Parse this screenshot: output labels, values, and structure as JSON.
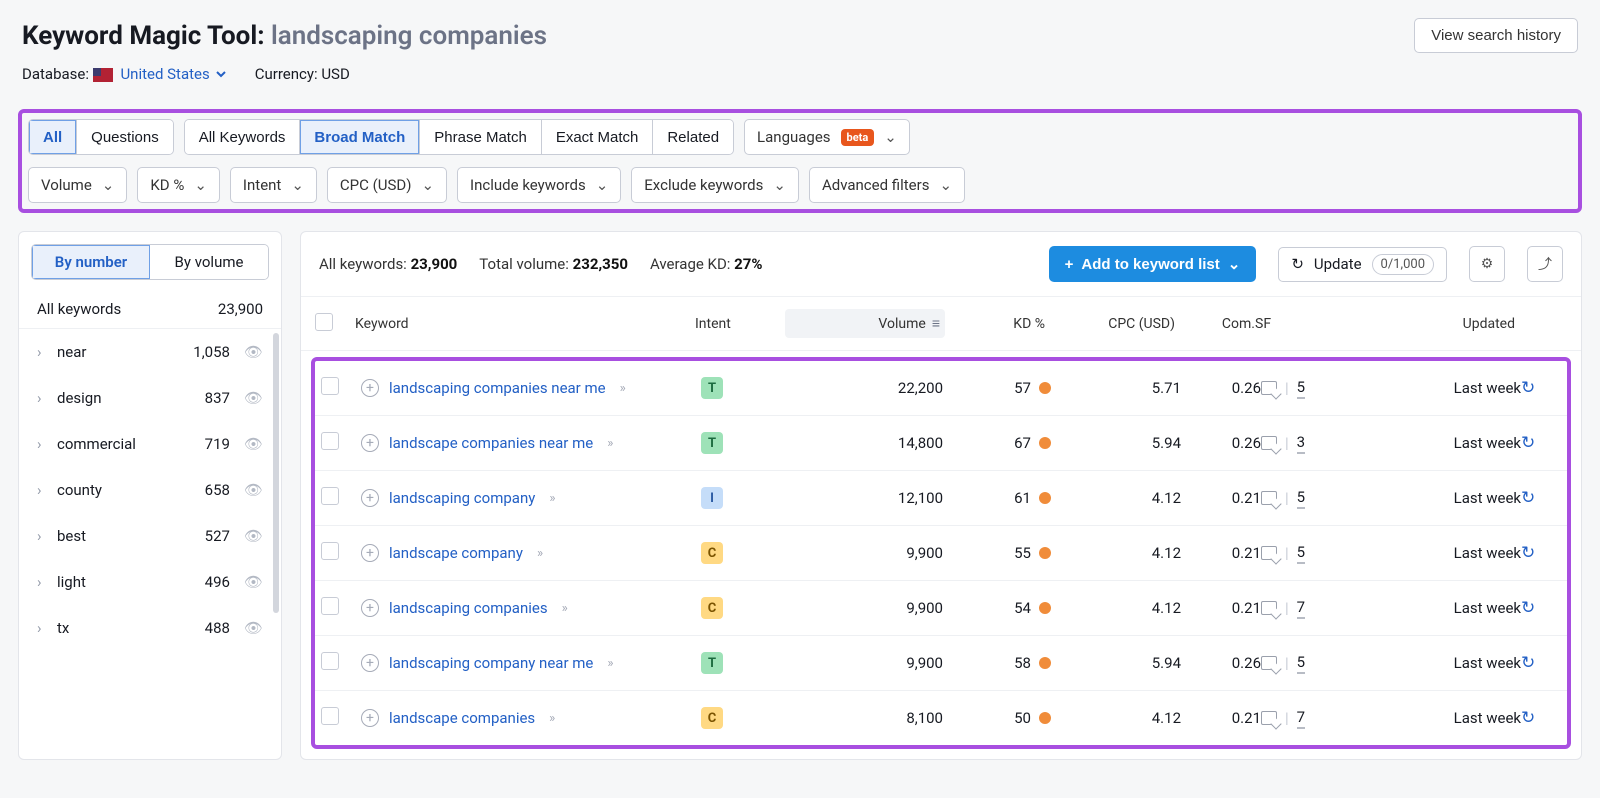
{
  "header": {
    "tool_name": "Keyword Magic Tool:",
    "query": "landscaping companies",
    "history_btn": "View search history",
    "database_label": "Database:",
    "database_value": "United States",
    "currency_label": "Currency: USD"
  },
  "filters": {
    "tabs1": [
      "All",
      "Questions"
    ],
    "tabs1_active": 0,
    "tabs2": [
      "All Keywords",
      "Broad Match",
      "Phrase Match",
      "Exact Match",
      "Related"
    ],
    "tabs2_active": 1,
    "languages_label": "Languages",
    "beta_label": "beta",
    "row2": [
      "Volume",
      "KD %",
      "Intent",
      "CPC (USD)",
      "Include keywords",
      "Exclude keywords",
      "Advanced filters"
    ]
  },
  "sidebar": {
    "tab1": "By number",
    "tab2": "By volume",
    "all_label": "All keywords",
    "all_count": "23,900",
    "items": [
      {
        "name": "near",
        "count": "1,058"
      },
      {
        "name": "design",
        "count": "837"
      },
      {
        "name": "commercial",
        "count": "719"
      },
      {
        "name": "county",
        "count": "658"
      },
      {
        "name": "best",
        "count": "527"
      },
      {
        "name": "light",
        "count": "496"
      },
      {
        "name": "tx",
        "count": "488"
      }
    ]
  },
  "stats": {
    "all_label": "All keywords:",
    "all_value": "23,900",
    "vol_label": "Total volume:",
    "vol_value": "232,350",
    "kd_label": "Average KD:",
    "kd_value": "27%",
    "add_btn": "Add to keyword list",
    "update_btn": "Update",
    "update_count": "0/1,000"
  },
  "table": {
    "headers": {
      "keyword": "Keyword",
      "intent": "Intent",
      "volume": "Volume",
      "kd": "KD %",
      "cpc": "CPC (USD)",
      "com": "Com.",
      "sf": "SF",
      "updated": "Updated"
    },
    "rows": [
      {
        "keyword": "landscaping companies near me",
        "intent": "T",
        "volume": "22,200",
        "kd": "57",
        "cpc": "5.71",
        "com": "0.26",
        "sf": "5",
        "updated": "Last week"
      },
      {
        "keyword": "landscape companies near me",
        "intent": "T",
        "volume": "14,800",
        "kd": "67",
        "cpc": "5.94",
        "com": "0.26",
        "sf": "3",
        "updated": "Last week"
      },
      {
        "keyword": "landscaping company",
        "intent": "I",
        "volume": "12,100",
        "kd": "61",
        "cpc": "4.12",
        "com": "0.21",
        "sf": "5",
        "updated": "Last week"
      },
      {
        "keyword": "landscape company",
        "intent": "C",
        "volume": "9,900",
        "kd": "55",
        "cpc": "4.12",
        "com": "0.21",
        "sf": "5",
        "updated": "Last week"
      },
      {
        "keyword": "landscaping companies",
        "intent": "C",
        "volume": "9,900",
        "kd": "54",
        "cpc": "4.12",
        "com": "0.21",
        "sf": "7",
        "updated": "Last week"
      },
      {
        "keyword": "landscaping company near me",
        "intent": "T",
        "volume": "9,900",
        "kd": "58",
        "cpc": "5.94",
        "com": "0.26",
        "sf": "5",
        "updated": "Last week"
      },
      {
        "keyword": "landscape companies",
        "intent": "C",
        "volume": "8,100",
        "kd": "50",
        "cpc": "4.12",
        "com": "0.21",
        "sf": "7",
        "updated": "Last week"
      }
    ]
  },
  "colors": {
    "accent_link": "#2360c5",
    "highlight_border": "#a84fe0",
    "kd_dot": "#f08c3a",
    "add_btn_bg": "#1d8ce0"
  }
}
